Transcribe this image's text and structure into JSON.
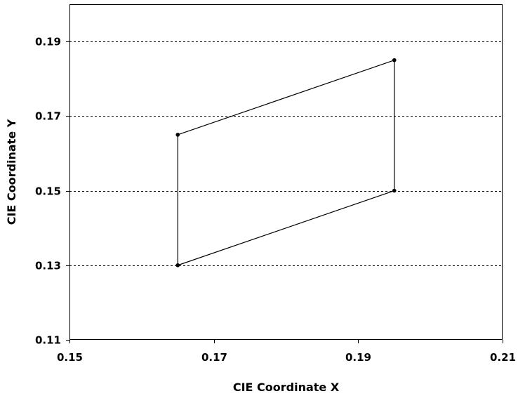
{
  "chart_data": {
    "type": "scatter",
    "title": "",
    "xlabel": "CIE Coordinate X",
    "ylabel": "CIE Coordinate Y",
    "xlim": [
      0.15,
      0.21
    ],
    "ylim": [
      0.11,
      0.2
    ],
    "x_ticks": [
      0.15,
      0.17,
      0.19,
      0.21
    ],
    "x_tick_labels": [
      "0.15",
      "0.17",
      "0.19",
      "0.21"
    ],
    "y_ticks": [
      0.11,
      0.13,
      0.15,
      0.17,
      0.19
    ],
    "y_tick_labels": [
      "0.11",
      "0.13",
      "0.15",
      "0.17",
      "0.19"
    ],
    "grid": {
      "horizontal": true,
      "vertical": false,
      "style": "dashed"
    },
    "legend": "none",
    "series": [
      {
        "points": [
          {
            "x": 0.165,
            "y": 0.165
          },
          {
            "x": 0.195,
            "y": 0.185
          },
          {
            "x": 0.195,
            "y": 0.15
          },
          {
            "x": 0.165,
            "y": 0.13
          }
        ],
        "closed": true,
        "color": "#000000"
      }
    ]
  }
}
